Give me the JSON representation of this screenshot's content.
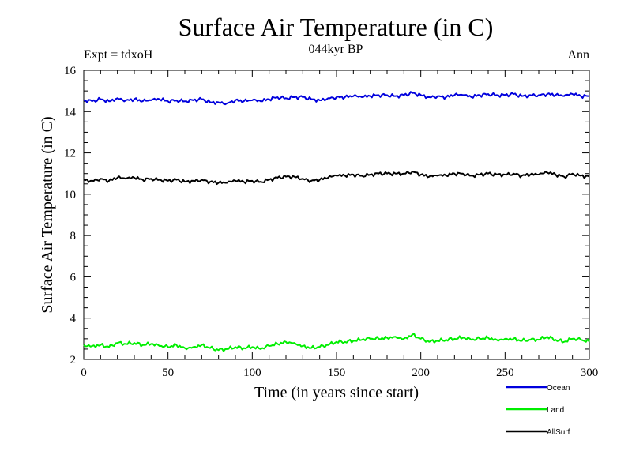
{
  "header": {
    "title": "Surface Air Temperature (in C)",
    "subtitle": "044kyr BP",
    "experiment": "Expt = tdxoH",
    "season": "Ann"
  },
  "chart_data": {
    "type": "line",
    "title": "Surface Air Temperature (in C)",
    "subtitle": "044kyr BP",
    "xlabel": "Time (in years since start)",
    "ylabel": "Surface Air Temperature (in C)",
    "xlim": [
      0,
      300
    ],
    "ylim": [
      2,
      16
    ],
    "xticks": [
      0,
      50,
      100,
      150,
      200,
      250,
      300
    ],
    "yticks": [
      2,
      4,
      6,
      8,
      10,
      12,
      14,
      16
    ],
    "grid": false,
    "legend_position": "bottom-right",
    "x": [
      0,
      5,
      10,
      15,
      20,
      25,
      30,
      35,
      40,
      45,
      50,
      55,
      60,
      65,
      70,
      75,
      80,
      85,
      90,
      95,
      100,
      105,
      110,
      115,
      120,
      125,
      130,
      135,
      140,
      145,
      150,
      155,
      160,
      165,
      170,
      175,
      180,
      185,
      190,
      195,
      200,
      205,
      210,
      215,
      220,
      225,
      230,
      235,
      240,
      245,
      250,
      255,
      260,
      265,
      270,
      275,
      280,
      285,
      290,
      295,
      300
    ],
    "series": [
      {
        "name": "Ocean",
        "color": "#0000dd",
        "values": [
          14.55,
          14.5,
          14.6,
          14.5,
          14.65,
          14.55,
          14.6,
          14.5,
          14.55,
          14.6,
          14.5,
          14.55,
          14.5,
          14.55,
          14.6,
          14.45,
          14.45,
          14.4,
          14.55,
          14.5,
          14.55,
          14.5,
          14.6,
          14.7,
          14.65,
          14.7,
          14.7,
          14.6,
          14.55,
          14.65,
          14.7,
          14.7,
          14.75,
          14.7,
          14.75,
          14.8,
          14.8,
          14.75,
          14.8,
          14.9,
          14.8,
          14.7,
          14.75,
          14.7,
          14.8,
          14.8,
          14.7,
          14.8,
          14.85,
          14.8,
          14.8,
          14.85,
          14.75,
          14.8,
          14.8,
          14.85,
          14.8,
          14.75,
          14.85,
          14.75,
          14.75
        ]
      },
      {
        "name": "Land",
        "color": "#00ee00",
        "values": [
          2.7,
          2.65,
          2.7,
          2.6,
          2.8,
          2.75,
          2.8,
          2.7,
          2.75,
          2.65,
          2.6,
          2.7,
          2.55,
          2.6,
          2.7,
          2.55,
          2.45,
          2.5,
          2.6,
          2.55,
          2.6,
          2.5,
          2.65,
          2.75,
          2.85,
          2.8,
          2.65,
          2.55,
          2.6,
          2.7,
          2.85,
          2.85,
          2.9,
          2.95,
          3.0,
          3.0,
          3.05,
          3.1,
          3.0,
          3.2,
          3.0,
          2.85,
          2.9,
          2.95,
          3.0,
          3.05,
          2.95,
          3.0,
          3.05,
          2.95,
          3.0,
          3.0,
          2.9,
          2.95,
          2.95,
          3.1,
          2.95,
          2.85,
          3.0,
          2.95,
          2.85
        ]
      },
      {
        "name": "AllSurf",
        "color": "#000000",
        "values": [
          10.7,
          10.65,
          10.75,
          10.65,
          10.8,
          10.75,
          10.8,
          10.7,
          10.75,
          10.7,
          10.65,
          10.7,
          10.6,
          10.65,
          10.7,
          10.6,
          10.55,
          10.55,
          10.65,
          10.6,
          10.65,
          10.6,
          10.7,
          10.8,
          10.85,
          10.85,
          10.75,
          10.65,
          10.7,
          10.8,
          10.9,
          10.9,
          10.95,
          10.9,
          10.95,
          11.0,
          11.0,
          11.0,
          11.0,
          11.1,
          10.95,
          10.85,
          10.9,
          10.9,
          11.0,
          11.0,
          10.9,
          10.95,
          11.0,
          10.95,
          10.95,
          11.0,
          10.9,
          10.95,
          10.95,
          11.05,
          10.95,
          10.85,
          11.0,
          10.9,
          10.85
        ]
      }
    ]
  }
}
